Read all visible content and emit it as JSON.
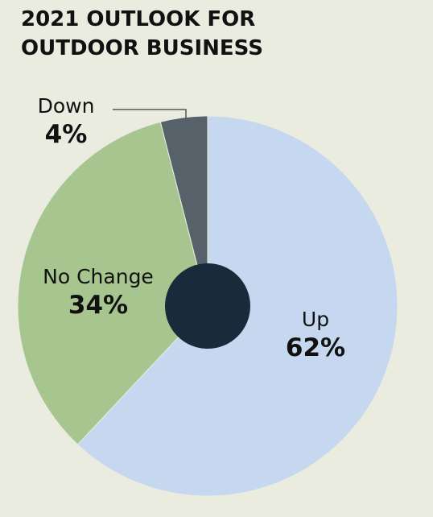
{
  "title_line1": "2021 OUTLOOK FOR",
  "title_line2": "OUTDOOR BUSINESS",
  "chart_data": {
    "type": "pie",
    "title": "2021 OUTLOOK FOR OUTDOOR BUSINESS",
    "slices": [
      {
        "label": "Up",
        "value": 62,
        "display": "62%",
        "color": "#c5d8ef"
      },
      {
        "label": "No Change",
        "value": 34,
        "display": "34%",
        "color": "#a7c58e"
      },
      {
        "label": "Down",
        "value": 4,
        "display": "4%",
        "color": "#566169"
      }
    ],
    "center_color": "#172b3b",
    "background": "#e9ecdf"
  }
}
